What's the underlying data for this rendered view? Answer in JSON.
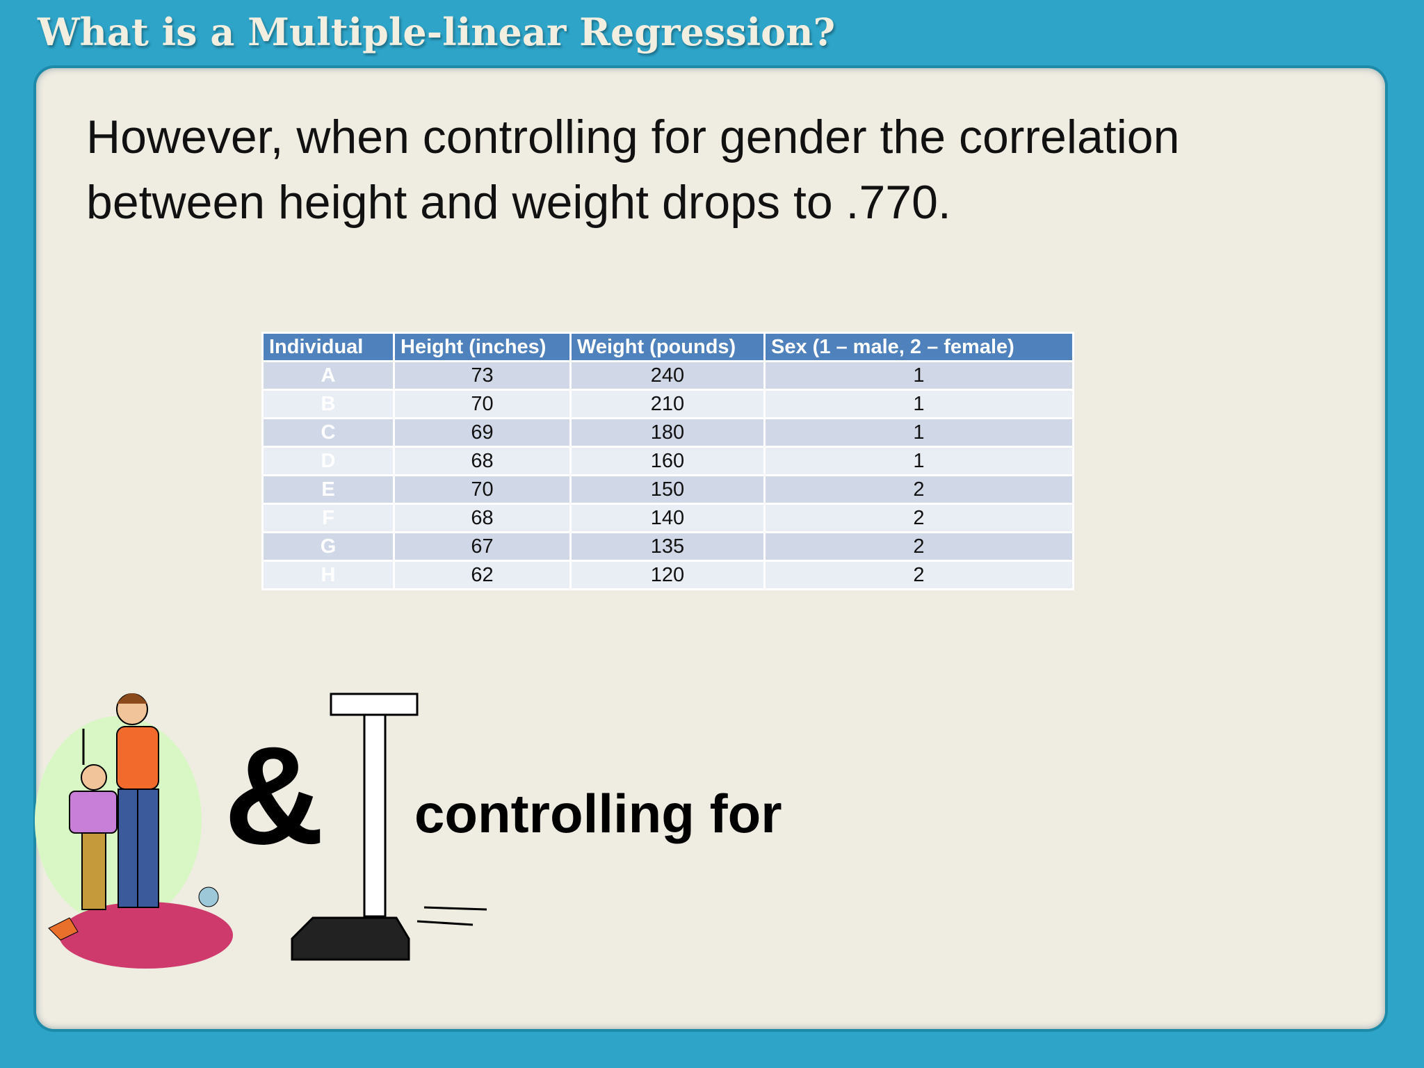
{
  "header": {
    "title": "What is a Multiple-linear Regression?"
  },
  "body": {
    "text_lines": [
      "However, when controlling for gender the correlation",
      "between height and weight drops to .770."
    ]
  },
  "table": {
    "columns": [
      "Individual",
      "Height (inches)",
      "Weight (pounds)",
      "Sex (1 – male, 2 – female)"
    ],
    "rows": [
      [
        "A",
        "73",
        "240",
        "1"
      ],
      [
        "B",
        "70",
        "210",
        "1"
      ],
      [
        "C",
        "69",
        "180",
        "1"
      ],
      [
        "D",
        "68",
        "160",
        "1"
      ],
      [
        "E",
        "70",
        "150",
        "2"
      ],
      [
        "F",
        "68",
        "140",
        "2"
      ],
      [
        "G",
        "67",
        "135",
        "2"
      ],
      [
        "H",
        "62",
        "120",
        "2"
      ]
    ]
  },
  "illustration": {
    "symbol": "&",
    "caption": "controlling for"
  }
}
